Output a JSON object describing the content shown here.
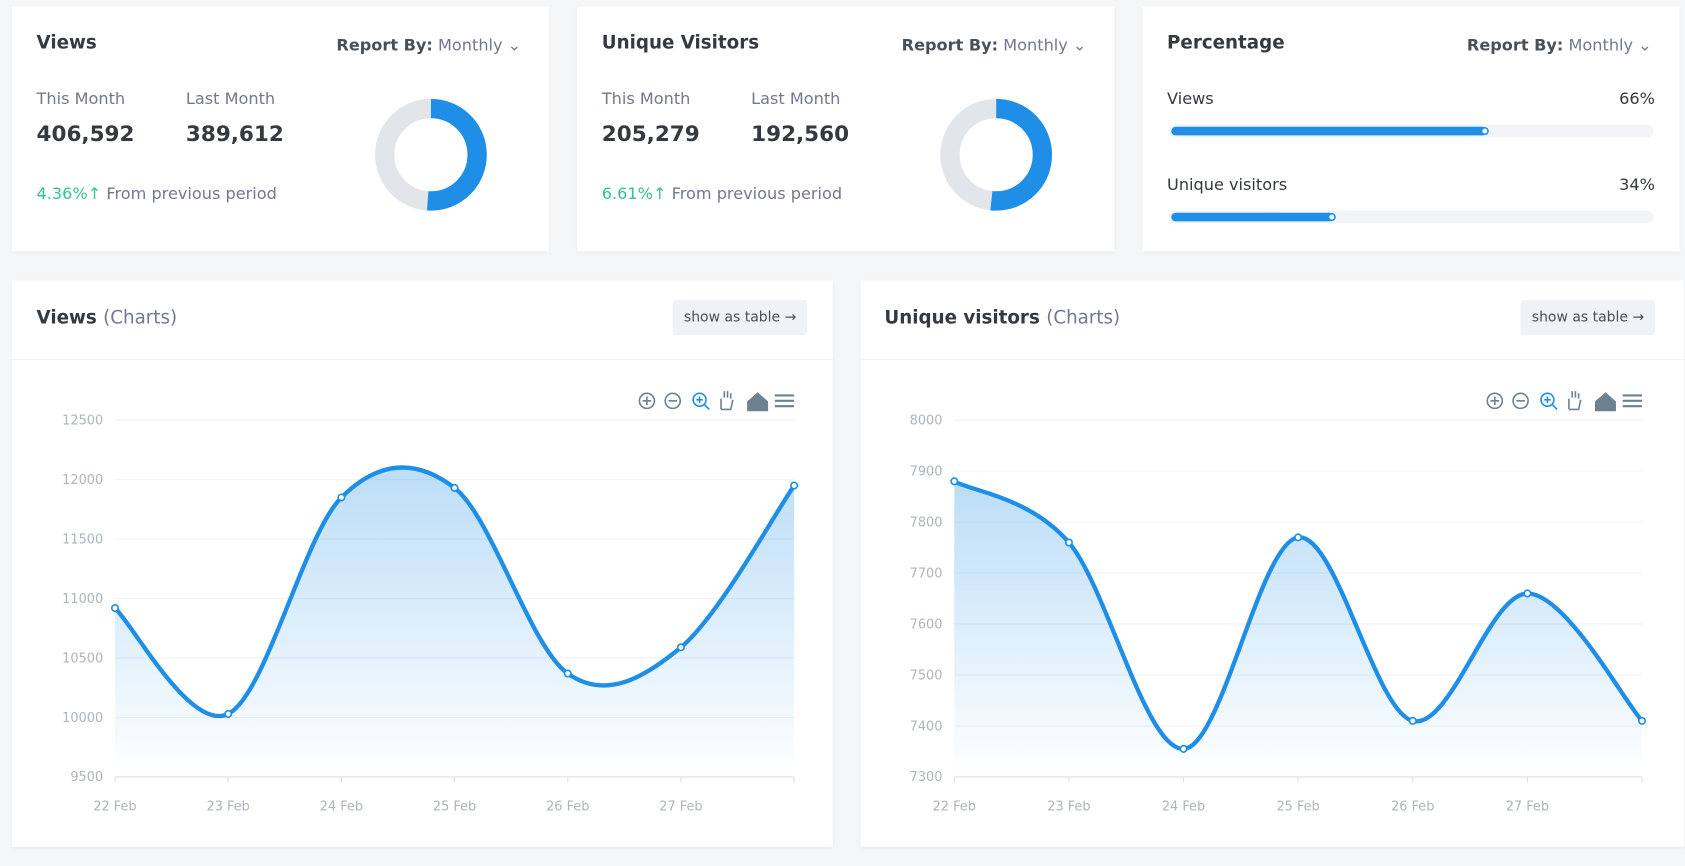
{
  "stat_cards": [
    {
      "title": "Views",
      "report_by_label": "Report By:",
      "report_by_value": "Monthly",
      "this_month_label": "This Month",
      "this_month": {
        "value": 406592,
        "label": "406,592"
      },
      "last_month_label": "Last Month",
      "last_month": {
        "value": 389612,
        "label": "389,612"
      },
      "change": "4.36%",
      "change_text": "From previous period"
    },
    {
      "title": "Unique Visitors",
      "report_by_label": "Report By:",
      "report_by_value": "Monthly",
      "this_month_label": "This Month",
      "this_month": {
        "value": 205279,
        "label": "205,279"
      },
      "last_month_label": "Last Month",
      "last_month": {
        "value": 192560,
        "label": "192,560"
      },
      "change": "6.61%",
      "change_text": "From previous period"
    }
  ],
  "percentage_card": {
    "title": "Percentage",
    "report_by_label": "Report By:",
    "report_by_value": "Monthly",
    "items": [
      {
        "name": "Views",
        "value": 66,
        "label": "66%"
      },
      {
        "name": "Unique visitors",
        "value": 34,
        "label": "34%"
      }
    ]
  },
  "chart_data": [
    {
      "type": "line",
      "title": "Views",
      "title_suffix": "(Charts)",
      "button": "show as table",
      "categories": [
        "22 Feb",
        "23 Feb",
        "24 Feb",
        "25 Feb",
        "26 Feb",
        "27 Feb",
        null
      ],
      "values": [
        10920,
        10030,
        11850,
        11930,
        10370,
        10590,
        11950
      ],
      "color": "#1e8ee6",
      "ylim": [
        9500,
        12500
      ],
      "yticks": [
        9500,
        10000,
        10500,
        11000,
        11500,
        12000,
        12500
      ],
      "grid": true
    },
    {
      "type": "line",
      "title": "Unique visitors",
      "title_suffix": "(Charts)",
      "button": "show as table",
      "categories": [
        "22 Feb",
        "23 Feb",
        "24 Feb",
        "25 Feb",
        "26 Feb",
        "27 Feb",
        null
      ],
      "values": [
        7880,
        7760,
        7355,
        7770,
        7410,
        7660,
        7410
      ],
      "color": "#1e8ee6",
      "ylim": [
        7300,
        8000
      ],
      "yticks": [
        7300,
        7400,
        7500,
        7600,
        7700,
        7800,
        7900,
        8000
      ],
      "grid": true
    }
  ]
}
